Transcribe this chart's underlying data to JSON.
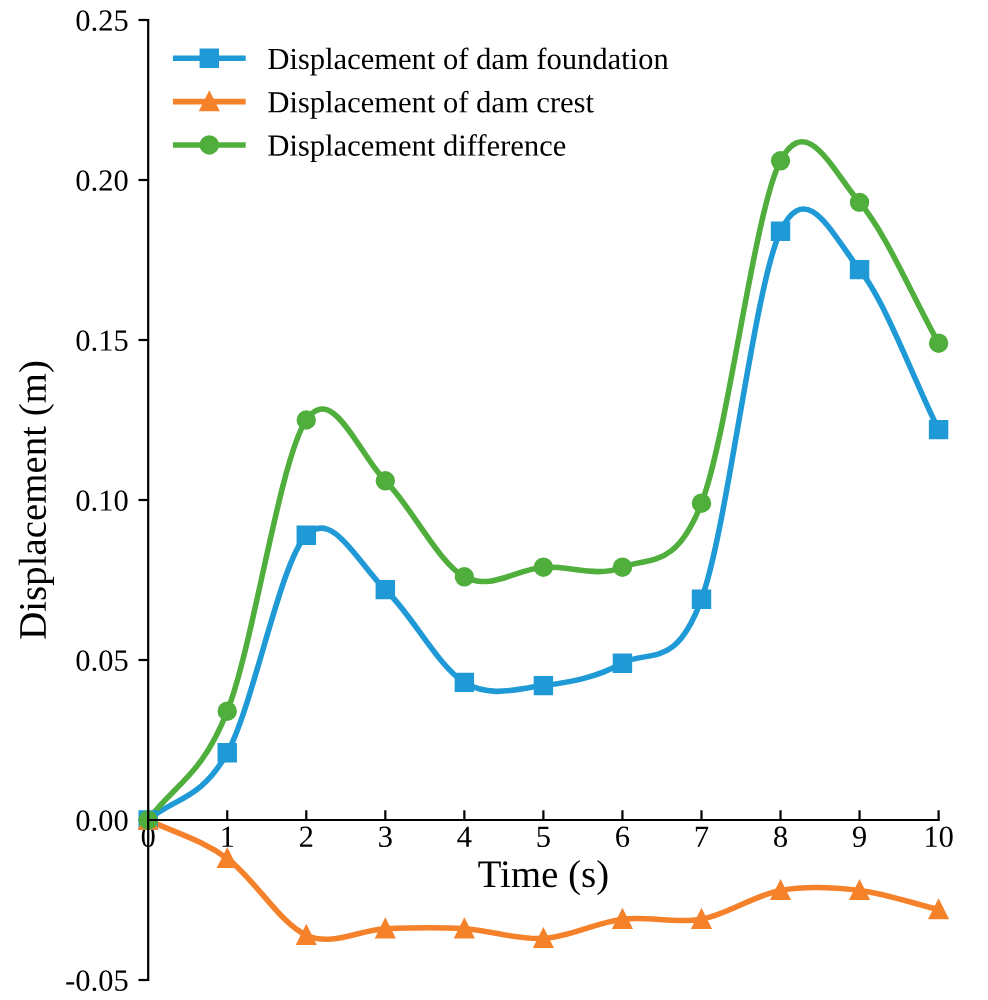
{
  "chart_data": {
    "type": "line",
    "xlabel": "Time (s)",
    "ylabel": "Displacement (m)",
    "x": [
      0,
      1,
      2,
      3,
      4,
      5,
      6,
      7,
      8,
      9,
      10
    ],
    "series": [
      {
        "name": "Displacement of dam foundation",
        "color": "#1f9ad6",
        "marker": "square",
        "values": [
          0,
          0.021,
          0.089,
          0.072,
          0.043,
          0.042,
          0.049,
          0.069,
          0.184,
          0.172,
          0.122
        ]
      },
      {
        "name": "Displacement of dam crest",
        "color": "#f5822a",
        "marker": "triangle",
        "values": [
          0,
          -0.012,
          -0.036,
          -0.034,
          -0.034,
          -0.037,
          -0.031,
          -0.031,
          -0.022,
          -0.022,
          -0.028
        ]
      },
      {
        "name": "Displacement difference",
        "color": "#4fae3c",
        "marker": "circle",
        "values": [
          0,
          0.034,
          0.125,
          0.106,
          0.076,
          0.079,
          0.079,
          0.099,
          0.206,
          0.193,
          0.149
        ]
      }
    ],
    "xlim": [
      0,
      10
    ],
    "xticks": [
      0,
      1,
      2,
      3,
      4,
      5,
      6,
      7,
      8,
      9,
      10
    ],
    "ylim": [
      -0.05,
      0.25
    ],
    "yticks": [
      {
        "value": -0.05,
        "label": "-0.05"
      },
      {
        "value": 0,
        "label": "0.00"
      },
      {
        "value": 0.05,
        "label": "0.05"
      },
      {
        "value": 0.1,
        "label": "0.10"
      },
      {
        "value": 0.15,
        "label": "0.15"
      },
      {
        "value": 0.2,
        "label": "0.20"
      },
      {
        "value": 0.25,
        "label": "0.25"
      }
    ],
    "grid": false,
    "legend": "top left",
    "line_style": "solid"
  }
}
